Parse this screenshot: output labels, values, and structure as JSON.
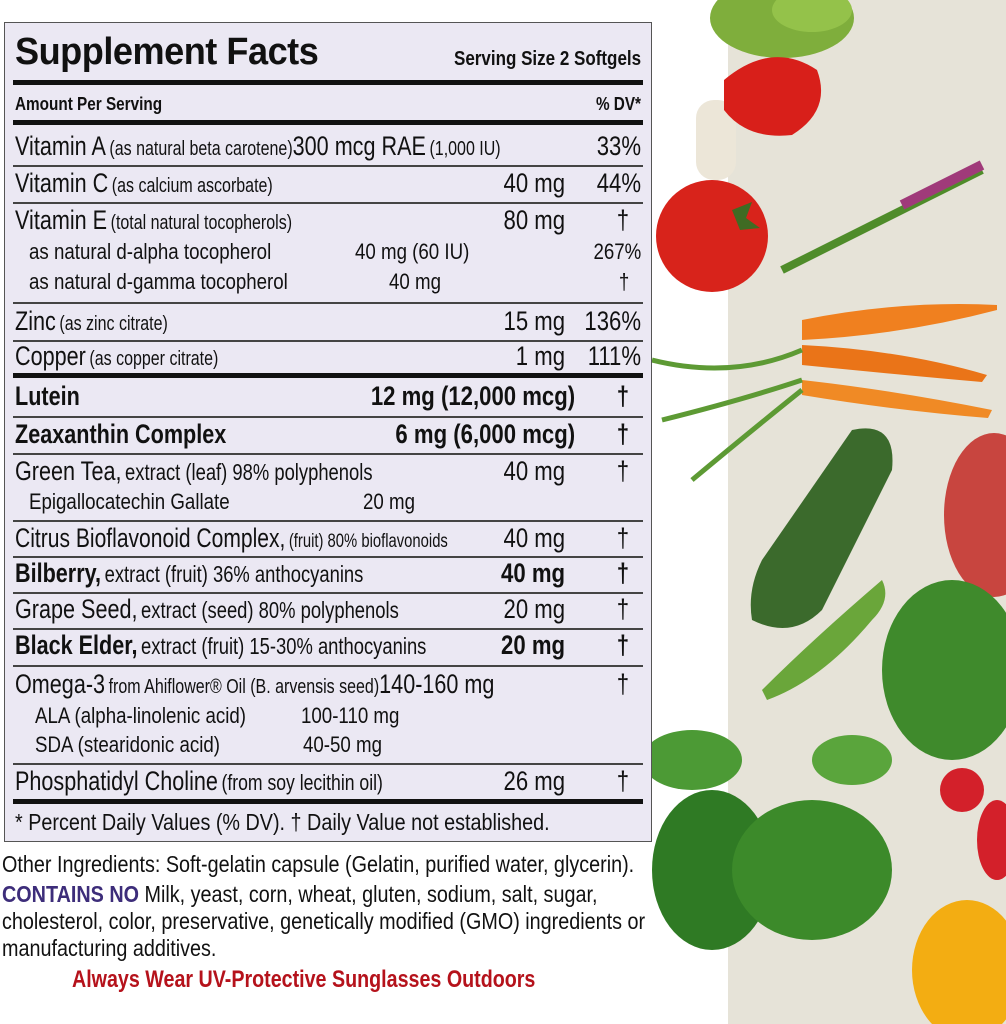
{
  "header": {
    "title": "Supplement Facts",
    "serving_size": "Serving Size 2 Softgels",
    "amount_per_serving": "Amount Per Serving",
    "dv_header": "% DV*"
  },
  "rows": [
    {
      "name": "Vitamin A",
      "detail": "(as natural beta carotene)",
      "amount": "300 mcg RAE",
      "amount_extra": "(1,000 IU)",
      "dv": "33%"
    },
    {
      "name": "Vitamin C",
      "detail": "(as calcium ascorbate)",
      "amount": "40 mg",
      "dv": "44%"
    },
    {
      "name": "Vitamin E",
      "detail": "(total natural tocopherols)",
      "amount": "80 mg",
      "dv": "†"
    },
    {
      "name": "as natural d-alpha tocopherol",
      "amount": "40 mg (60 IU)",
      "dv": "267%"
    },
    {
      "name": "as natural d-gamma tocopherol",
      "amount": "40 mg",
      "dv": "†"
    },
    {
      "name": "Zinc",
      "detail": "(as zinc citrate)",
      "amount": "15 mg",
      "dv": "136%"
    },
    {
      "name": "Copper",
      "detail": "(as copper citrate)",
      "amount": "1 mg",
      "dv": "111%"
    },
    {
      "name": "Lutein",
      "amount": "12 mg (12,000 mcg)",
      "dv": "†"
    },
    {
      "name": "Zeaxanthin Complex",
      "amount": "6 mg (6,000 mcg)",
      "dv": "†"
    },
    {
      "name": "Green Tea,",
      "detail": "extract (leaf) 98% polyphenols",
      "amount": "40 mg",
      "dv": "†"
    },
    {
      "name": "Epigallocatechin Gallate",
      "amount": "20 mg"
    },
    {
      "name": "Citrus Bioflavonoid Complex,",
      "detail": "(fruit) 80% bioflavonoids",
      "amount": "40 mg",
      "dv": "†"
    },
    {
      "name": "Bilberry,",
      "detail": "extract (fruit) 36% anthocyanins",
      "amount": "40 mg",
      "dv": "†"
    },
    {
      "name": "Grape Seed,",
      "detail": "extract (seed) 80% polyphenols",
      "amount": "20 mg",
      "dv": "†"
    },
    {
      "name": "Black Elder,",
      "detail": "extract (fruit) 15-30% anthocyanins",
      "amount": "20 mg",
      "dv": "†"
    },
    {
      "name": "Omega-3",
      "detail": "from Ahiflower® Oil (B. arvensis seed)",
      "amount": "140-160 mg",
      "dv": "†"
    },
    {
      "name": "ALA (alpha-linolenic acid)",
      "amount": "100-110 mg"
    },
    {
      "name": "SDA (stearidonic acid)",
      "amount": "40-50 mg"
    },
    {
      "name": "Phosphatidyl Choline",
      "detail": "(from soy lecithin oil)",
      "amount": "26 mg",
      "dv": "†"
    }
  ],
  "footnote": "* Percent Daily Values (% DV). † Daily Value not established.",
  "other_ingredients": "Other Ingredients: Soft-gelatin capsule (Gelatin, purified water, glycerin).",
  "contains_no_label": "CONTAINS NO",
  "contains_no_text": "Milk, yeast, corn, wheat, gluten, sodium, salt, sugar,",
  "contains_no_line2": "cholesterol, color, preservative, genetically modified (GMO) ingredients or",
  "contains_no_line3": "manufacturing additives.",
  "warning": "Always Wear UV-Protective Sunglasses Outdoors",
  "colors": {
    "panel": "#ebe8f3",
    "contains_no": "#3d2d7a",
    "warning": "#b5121b",
    "veg_band": "#e6e3d8"
  }
}
